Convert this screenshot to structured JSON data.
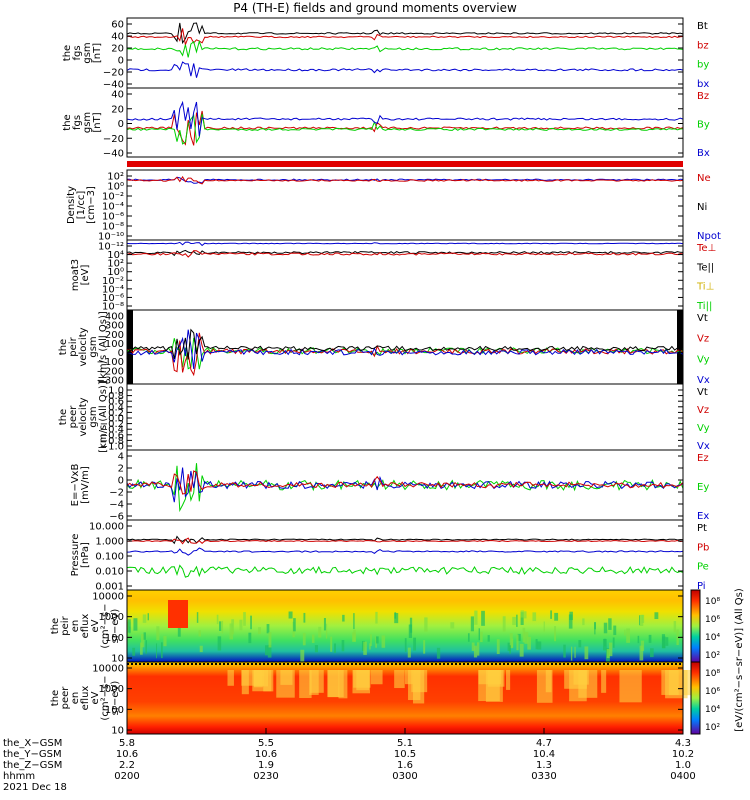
{
  "title": "P4 (TH-E) fields and ground moments overview",
  "colors": {
    "black": "#000000",
    "red": "#d00000",
    "green": "#00d000",
    "blue": "#0000d0",
    "lightgreen": "#22cc22"
  },
  "panels": [
    {
      "id": "fgs",
      "ylabel": [
        "the",
        "fgs",
        "gsm",
        "[nT]"
      ],
      "ticks": [
        "60",
        "40",
        "20",
        "0",
        "−20",
        "−40"
      ],
      "legend": [
        {
          "text": "Bt",
          "color": "#000000"
        },
        {
          "text": "bz",
          "color": "#d00000"
        },
        {
          "text": "by",
          "color": "#00d000"
        },
        {
          "text": "bx",
          "color": "#0000d0"
        }
      ]
    },
    {
      "id": "fgs2",
      "ylabel": [
        "the",
        "fgs",
        "gsm",
        "[nT]"
      ],
      "ticks": [
        "40",
        "20",
        "0",
        "−20",
        "−40"
      ],
      "legend": [
        {
          "text": "Bz",
          "color": "#d00000"
        },
        {
          "text": "By",
          "color": "#00d000"
        },
        {
          "text": "Bx",
          "color": "#0000d0"
        }
      ]
    },
    {
      "id": "dens",
      "ylabel": [
        "Density",
        "[1/cc]",
        "[cm−3]"
      ],
      "ticks": [
        "10²",
        "10⁰",
        "10⁻²",
        "10⁻⁴",
        "10⁻⁶",
        "10⁻⁸",
        "10⁻¹⁰"
      ],
      "legend": [
        {
          "text": "Ne",
          "color": "#d00000"
        },
        {
          "text": "Ni",
          "color": "#000000"
        },
        {
          "text": "Npot",
          "color": "#0000d0"
        }
      ]
    },
    {
      "id": "temp",
      "ylabel": [
        "moat3",
        "[eV]"
      ],
      "ticks": [
        "10⁻¹²",
        "10⁴",
        "10²",
        "10⁰",
        "10⁻²",
        "10⁻⁴",
        "10⁻⁶",
        "10⁻⁸"
      ],
      "legend": [
        {
          "text": "Te⊥",
          "color": "#d00000"
        },
        {
          "text": "Te||",
          "color": "#000000"
        },
        {
          "text": "Ti⊥",
          "color": "#d0b000"
        },
        {
          "text": "Ti||",
          "color": "#00d000"
        }
      ]
    },
    {
      "id": "vpeir",
      "ylabel": [
        "the",
        "peir",
        "velocity",
        "gsm",
        "[km/s (All Qs)]"
      ],
      "ticks": [
        "400",
        "300",
        "200",
        "100",
        "0",
        "−100",
        "−200",
        "−300"
      ],
      "legend": [
        {
          "text": "Vt",
          "color": "#000000"
        },
        {
          "text": "Vz",
          "color": "#d00000"
        },
        {
          "text": "Vy",
          "color": "#00d000"
        },
        {
          "text": "Vx",
          "color": "#0000d0"
        }
      ]
    },
    {
      "id": "vpeer",
      "ylabel": [
        "the",
        "peer",
        "velocity",
        "gsm",
        "[km/s (All Qs)]"
      ],
      "ticks": [
        "1.0",
        "0.8",
        "0.6",
        "0.4",
        "0.2",
        "0.0",
        "−0.2",
        "−0.4",
        "−0.6",
        "−0.8",
        "−1.0"
      ],
      "legend": [
        {
          "text": "Vt",
          "color": "#000000"
        },
        {
          "text": "Vz",
          "color": "#d00000"
        },
        {
          "text": "Vy",
          "color": "#00d000"
        },
        {
          "text": "Vx",
          "color": "#0000d0"
        }
      ]
    },
    {
      "id": "efield",
      "ylabel": [
        "E=−VxB",
        "[mV/m]"
      ],
      "ticks": [
        "4",
        "2",
        "0",
        "−2",
        "−4",
        "−6"
      ],
      "legend": [
        {
          "text": "Ez",
          "color": "#d00000"
        },
        {
          "text": "Ey",
          "color": "#00d000"
        },
        {
          "text": "Ex",
          "color": "#0000d0"
        }
      ]
    },
    {
      "id": "press",
      "ylabel": [
        "Pressure",
        "[nPa]"
      ],
      "ticks": [
        "10.000",
        "1.000",
        "0.100",
        "0.010",
        "0.001"
      ],
      "legend": [
        {
          "text": "Pt",
          "color": "#000000"
        },
        {
          "text": "Pb",
          "color": "#d00000"
        },
        {
          "text": "Pe",
          "color": "#00d000"
        },
        {
          "text": "Pi",
          "color": "#0000d0"
        }
      ]
    },
    {
      "id": "ispec",
      "ylabel": [
        "the",
        "peir",
        "en",
        "eflux",
        "eV",
        "(cm²−s−",
        "sr−eV)"
      ],
      "ticks": [
        "10000",
        "1000",
        "100",
        "10"
      ]
    },
    {
      "id": "espec",
      "ylabel": [
        "the",
        "peer",
        "en",
        "eflux",
        "eV",
        "(cm²−s−",
        "sr−eV)"
      ],
      "ticks": [
        "10000",
        "1000",
        "100",
        "10"
      ]
    }
  ],
  "colorbar": {
    "ticks": [
      "10⁸",
      "10⁶",
      "10⁴",
      "10²",
      "10⁸",
      "10⁶",
      "10⁴",
      "10²"
    ],
    "label": "[eV/(cm²−s−sr−eV)] (All Qs)"
  },
  "xaxis": {
    "rows": [
      "the_X−GSM",
      "the_Y−GSM",
      "the_Z−GSM",
      "hhmm",
      "2021 Dec 18"
    ],
    "columns": [
      {
        "x": "5.8",
        "y": "10.6",
        "z": "2.2",
        "t": "0200"
      },
      {
        "x": "5.5",
        "y": "10.6",
        "z": "1.9",
        "t": "0230"
      },
      {
        "x": "5.1",
        "y": "10.5",
        "z": "1.6",
        "t": "0300"
      },
      {
        "x": "4.7",
        "y": "10.4",
        "z": "1.3",
        "t": "0330"
      },
      {
        "x": "4.3",
        "y": "10.2",
        "z": "1.0",
        "t": "0400"
      }
    ]
  },
  "chart_data": {
    "type": "line",
    "x_time": [
      "0200",
      "0230",
      "0300",
      "0330",
      "0400"
    ],
    "series": [
      {
        "panel": "fgs",
        "name": "Bt",
        "color": "#000000",
        "baseline": 38
      },
      {
        "panel": "fgs",
        "name": "bz",
        "color": "#d00000",
        "baseline": 33
      },
      {
        "panel": "fgs",
        "name": "by",
        "color": "#00d000",
        "baseline": 16
      },
      {
        "panel": "fgs",
        "name": "bx",
        "color": "#0000d0",
        "baseline": -13
      },
      {
        "panel": "fgs2",
        "name": "Bz",
        "color": "#d00000",
        "baseline": -5
      },
      {
        "panel": "fgs2",
        "name": "By",
        "color": "#00d000",
        "baseline": -7
      },
      {
        "panel": "fgs2",
        "name": "Bx",
        "color": "#0000d0",
        "baseline": 5
      }
    ],
    "ylim_fgs": [
      -40,
      60
    ],
    "ylim_fgs2": [
      -50,
      50
    ],
    "ylim_vpeir": [
      -300,
      400
    ],
    "ylim_efield": [
      -6,
      4
    ]
  }
}
